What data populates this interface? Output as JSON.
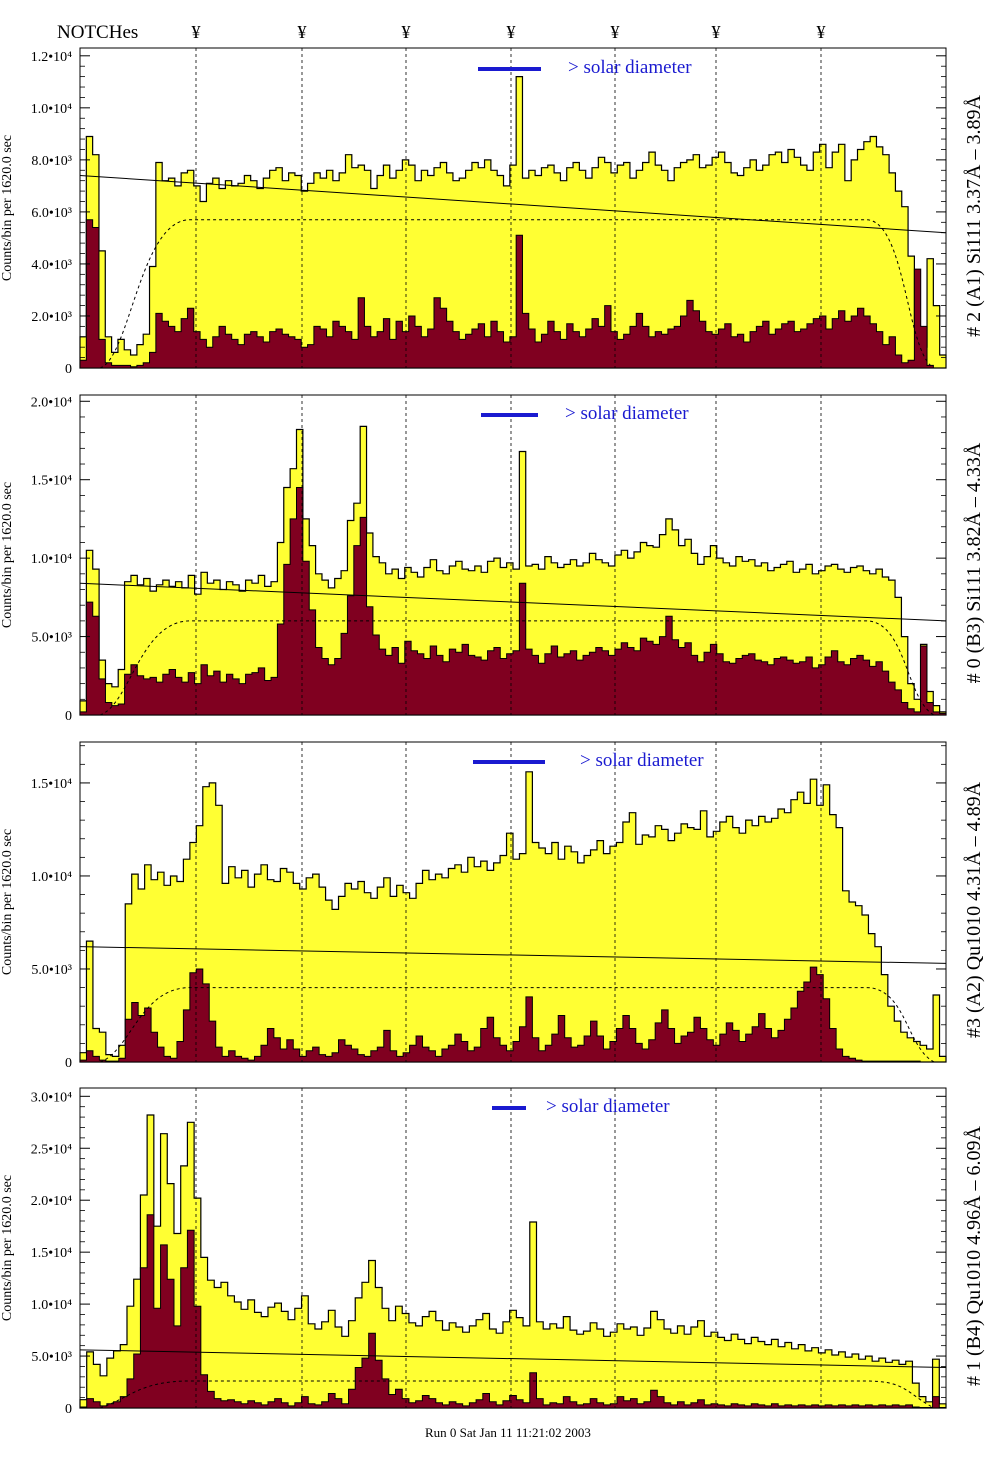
{
  "header": {
    "notches_label": "NOTCHes",
    "notch_symbol": "¥",
    "notch_positions": [
      196,
      302,
      406,
      511,
      615,
      716,
      821
    ]
  },
  "footer": {
    "run_stamp": "Run 0 Sat Jan 11 11:21:02 2003"
  },
  "colors": {
    "total_fill": "#ffff33",
    "line_fill": "#800020",
    "solar_bar": "#1a1ad0",
    "solar_text": "#1a1ad0"
  },
  "chart_data": [
    {
      "type": "area",
      "id": "A1",
      "right_label": "# 2 (A1) Si111  3.37Å – 3.89Å",
      "y_label": "Counts/bin per  1620.0 sec",
      "solar_label": "> solar diameter",
      "yticks": [
        {
          "v": 0,
          "label": "0"
        },
        {
          "v": 2000,
          "label": "2.0•10³"
        },
        {
          "v": 4000,
          "label": "4.0•10³"
        },
        {
          "v": 6000,
          "label": "6.0•10³"
        },
        {
          "v": 8000,
          "label": "8.0•10³"
        },
        {
          "v": 10000,
          "label": "1.0•10⁴"
        },
        {
          "v": 12000,
          "label": "1.2•10⁴"
        }
      ],
      "ylim": [
        0,
        12300
      ],
      "fit_values": [
        7400,
        5200
      ],
      "dashed_level": 5700,
      "total_counts": [
        1200,
        8900,
        8200,
        4500,
        1200,
        600,
        1100,
        700,
        500,
        900,
        1300,
        3900,
        7900,
        7200,
        7300,
        7000,
        7500,
        7600,
        7000,
        6400,
        7100,
        7300,
        6900,
        7200,
        7000,
        7100,
        7400,
        7200,
        6900,
        7300,
        7600,
        7700,
        7200,
        7500,
        7400,
        6800,
        7100,
        7500,
        7300,
        7600,
        7200,
        7500,
        8200,
        7700,
        7800,
        7600,
        6900,
        7400,
        7800,
        7300,
        7600,
        8000,
        7800,
        7200,
        7600,
        7400,
        7700,
        7900,
        7500,
        7200,
        7300,
        7600,
        7900,
        7700,
        8000,
        7600,
        7400,
        7000,
        7800,
        11200,
        7300,
        7600,
        7400,
        7700,
        7800,
        7500,
        7200,
        7700,
        7900,
        7600,
        7300,
        7700,
        8100,
        7900,
        7500,
        7800,
        7900,
        7300,
        7600,
        7900,
        8300,
        7800,
        7600,
        7200,
        7700,
        7900,
        8000,
        8200,
        7700,
        7800,
        8100,
        8300,
        7900,
        7500,
        7400,
        7700,
        8000,
        7600,
        7800,
        8200,
        8300,
        7900,
        8400,
        8100,
        7800,
        7600,
        8300,
        8600,
        7700,
        8300,
        8600,
        7200,
        8000,
        8400,
        8700,
        8900,
        8500,
        8200,
        7500,
        6800,
        6200,
        4300,
        1600,
        800,
        4200,
        2400,
        500
      ],
      "line_counts": [
        300,
        5700,
        5400,
        1100,
        200,
        100,
        100,
        100,
        50,
        100,
        200,
        600,
        2100,
        1800,
        1600,
        1400,
        1900,
        2300,
        1400,
        1100,
        800,
        1200,
        1600,
        1300,
        1100,
        900,
        1300,
        1400,
        1200,
        1000,
        1400,
        1500,
        1300,
        1200,
        1100,
        800,
        900,
        1600,
        1500,
        1200,
        1800,
        1600,
        1400,
        1100,
        2700,
        1600,
        1200,
        1400,
        1900,
        1100,
        1800,
        1400,
        2000,
        1600,
        1200,
        1500,
        2700,
        2300,
        1800,
        1400,
        1100,
        1300,
        1500,
        1700,
        1200,
        1800,
        1400,
        1000,
        1200,
        5100,
        2100,
        1500,
        1000,
        1300,
        1800,
        1400,
        1100,
        1700,
        1400,
        1200,
        1500,
        1900,
        1600,
        2400,
        1400,
        1100,
        1300,
        1600,
        2100,
        1600,
        1200,
        1400,
        1300,
        1500,
        1600,
        2000,
        2600,
        2200,
        1800,
        1400,
        1300,
        1500,
        1700,
        1200,
        1300,
        1000,
        1400,
        1600,
        1800,
        1300,
        1500,
        1700,
        1800,
        1400,
        1500,
        1700,
        1900,
        2000,
        1500,
        1900,
        2200,
        1800,
        2000,
        2300,
        2000,
        1700,
        1400,
        900,
        1200,
        500,
        200,
        300,
        3800,
        1600,
        100
      ]
    },
    {
      "type": "area",
      "id": "B3",
      "right_label": "# 0 (B3) Si111  3.82Å – 4.33Å",
      "y_label": "Counts/bin per  1620.0 sec",
      "solar_label": "> solar diameter",
      "yticks": [
        {
          "v": 0,
          "label": "0"
        },
        {
          "v": 5000,
          "label": "5.0•10³"
        },
        {
          "v": 10000,
          "label": "1.0•10⁴"
        },
        {
          "v": 15000,
          "label": "1.5•10⁴"
        },
        {
          "v": 20000,
          "label": "2.0•10⁴"
        }
      ],
      "ylim": [
        0,
        20400
      ],
      "fit_values": [
        8400,
        6000
      ],
      "dashed_level": 6000,
      "total_counts": [
        900,
        10500,
        9300,
        3500,
        2000,
        1800,
        2900,
        8500,
        8900,
        8300,
        8700,
        7900,
        8300,
        8600,
        8200,
        8500,
        8100,
        8900,
        7700,
        9100,
        8400,
        8600,
        8000,
        8500,
        8300,
        7900,
        8600,
        8400,
        8900,
        8200,
        8500,
        11000,
        14500,
        15700,
        18200,
        12500,
        10800,
        9000,
        8600,
        8100,
        8700,
        9200,
        12400,
        13500,
        18400,
        11600,
        10100,
        9700,
        9000,
        9300,
        8700,
        9400,
        9100,
        8800,
        9400,
        9900,
        9200,
        9000,
        9500,
        9800,
        9300,
        9200,
        9500,
        9100,
        9800,
        10000,
        9400,
        9700,
        9300,
        16800,
        9500,
        9600,
        9300,
        10100,
        9700,
        9400,
        9600,
        9900,
        9500,
        9700,
        10300,
        9900,
        9700,
        9500,
        10200,
        10500,
        10000,
        10400,
        11000,
        10800,
        10700,
        11500,
        12500,
        11800,
        10800,
        11200,
        10300,
        9600,
        10100,
        10800,
        10000,
        9700,
        9500,
        10100,
        9800,
        9900,
        9500,
        9700,
        9200,
        9400,
        9600,
        9800,
        9100,
        9300,
        9600,
        9000,
        9200,
        9500,
        9600,
        9300,
        9100,
        9400,
        9500,
        9200,
        9000,
        9300,
        8800,
        8600,
        7500,
        5000,
        2000,
        1000,
        4500,
        1500,
        600,
        200
      ],
      "line_counts": [
        200,
        7200,
        6300,
        2300,
        800,
        600,
        700,
        2600,
        3200,
        2500,
        2300,
        2400,
        2100,
        2600,
        2900,
        2400,
        2100,
        2700,
        2000,
        3200,
        2500,
        2800,
        2100,
        2600,
        2300,
        2000,
        2600,
        2700,
        3000,
        2200,
        2400,
        5800,
        9600,
        12500,
        14500,
        9800,
        6700,
        4300,
        3600,
        3200,
        3600,
        5200,
        7600,
        10800,
        12600,
        6900,
        5100,
        4200,
        3800,
        4300,
        3300,
        4700,
        4100,
        3900,
        3600,
        4400,
        3800,
        3400,
        4200,
        4000,
        4500,
        3800,
        3700,
        3500,
        4100,
        4300,
        3600,
        3900,
        4100,
        8400,
        4200,
        3800,
        3300,
        3900,
        4400,
        3700,
        3900,
        4100,
        3500,
        3800,
        4000,
        4300,
        4100,
        3800,
        4200,
        4600,
        4300,
        4100,
        4900,
        4700,
        4500,
        5000,
        6300,
        4800,
        4300,
        4600,
        3800,
        3400,
        4000,
        4500,
        3900,
        3400,
        3300,
        3600,
        3800,
        3900,
        3500,
        3400,
        3200,
        3600,
        3700,
        3500,
        3300,
        3400,
        3700,
        3000,
        3200,
        3700,
        4100,
        3400,
        3200,
        3600,
        3800,
        3500,
        3100,
        3400,
        2800,
        2100,
        1600,
        800,
        400,
        200,
        4400,
        800,
        200,
        100
      ]
    },
    {
      "type": "area",
      "id": "A2",
      "right_label": "#3 (A2) Qu1010  4.31Å – 4.89Å",
      "y_label": "Counts/bin per  1620.0 sec",
      "solar_label": "> solar diameter",
      "yticks": [
        {
          "v": 0,
          "label": "0"
        },
        {
          "v": 5000,
          "label": "5.0•10³"
        },
        {
          "v": 10000,
          "label": "1.0•10⁴"
        },
        {
          "v": 15000,
          "label": "1.5•10⁴"
        }
      ],
      "ylim": [
        0,
        17200
      ],
      "fit_values": [
        6200,
        5300
      ],
      "dashed_level": 4000,
      "total_counts": [
        500,
        6500,
        1800,
        1600,
        400,
        300,
        900,
        8500,
        10100,
        9300,
        10600,
        9800,
        10200,
        9500,
        10000,
        9700,
        10900,
        11800,
        12700,
        14800,
        15000,
        13800,
        9600,
        10500,
        9900,
        10300,
        9400,
        10100,
        10600,
        9800,
        9700,
        10400,
        10200,
        9600,
        9300,
        9900,
        10100,
        9400,
        8700,
        8200,
        8900,
        9600,
        9300,
        9700,
        9100,
        8800,
        9400,
        9900,
        8900,
        9500,
        9100,
        8800,
        9600,
        10300,
        9800,
        10100,
        9900,
        10400,
        10600,
        10200,
        11000,
        10500,
        10800,
        10300,
        10700,
        11100,
        12300,
        10900,
        11200,
        15600,
        11800,
        11500,
        11200,
        11800,
        10900,
        11600,
        11300,
        10700,
        11100,
        11400,
        11900,
        11200,
        11600,
        11800,
        12900,
        13400,
        11700,
        12200,
        12100,
        12700,
        12500,
        11900,
        12300,
        12800,
        12600,
        12500,
        13500,
        12100,
        12400,
        12900,
        13200,
        12600,
        12300,
        13000,
        12700,
        13200,
        12900,
        13100,
        13600,
        13400,
        14100,
        14500,
        13900,
        15200,
        13800,
        14900,
        13300,
        12600,
        9200,
        8600,
        8400,
        7900,
        6900,
        6200,
        4700,
        3000,
        2200,
        1600,
        1300,
        1100,
        900,
        700,
        3600,
        300
      ],
      "line_counts": [
        100,
        600,
        300,
        100,
        50,
        50,
        200,
        2300,
        3200,
        2500,
        2900,
        1600,
        800,
        300,
        200,
        1100,
        2800,
        4800,
        5000,
        4200,
        2200,
        800,
        300,
        600,
        300,
        200,
        100,
        300,
        900,
        1800,
        1300,
        700,
        1200,
        700,
        300,
        600,
        800,
        400,
        300,
        500,
        1200,
        900,
        700,
        400,
        300,
        600,
        800,
        1700,
        600,
        300,
        500,
        900,
        1400,
        800,
        600,
        300,
        700,
        900,
        1500,
        1100,
        600,
        800,
        1800,
        2400,
        1300,
        900,
        600,
        1100,
        1900,
        3500,
        1300,
        600,
        900,
        1500,
        2500,
        1300,
        800,
        900,
        1400,
        2200,
        1400,
        700,
        1100,
        1800,
        2500,
        1800,
        1000,
        700,
        1200,
        2100,
        2800,
        1800,
        1000,
        1400,
        1600,
        2400,
        1800,
        1200,
        900,
        1500,
        2100,
        1700,
        1100,
        1500,
        1900,
        2600,
        1800,
        1300,
        1700,
        2300,
        2900,
        3800,
        4300,
        5100,
        4700,
        3400,
        1800,
        700,
        300,
        200,
        100,
        50,
        50,
        50,
        50,
        50,
        50,
        50,
        50,
        50
      ]
    },
    {
      "type": "area",
      "id": "B4",
      "right_label": "# 1 (B4) Qu1010 4.96Å – 6.09Å",
      "y_label": "Counts/bin per  1620.0 sec",
      "solar_label": "> solar diameter",
      "yticks": [
        {
          "v": 0,
          "label": "0"
        },
        {
          "v": 5000,
          "label": "5.0•10³"
        },
        {
          "v": 10000,
          "label": "1.0•10⁴"
        },
        {
          "v": 15000,
          "label": "1.5•10⁴"
        },
        {
          "v": 20000,
          "label": "2.0•10⁴"
        },
        {
          "v": 25000,
          "label": "2.5•10⁴"
        },
        {
          "v": 30000,
          "label": "3.0•10⁴"
        }
      ],
      "ylim": [
        0,
        30800
      ],
      "fit_values": [
        5600,
        3900
      ],
      "dashed_level": 2600,
      "total_counts": [
        800,
        5400,
        4200,
        3100,
        4800,
        5500,
        6100,
        9800,
        12400,
        20500,
        28200,
        17500,
        26400,
        21600,
        16800,
        23300,
        27500,
        20200,
        14500,
        12300,
        11600,
        12100,
        10800,
        10200,
        9500,
        10400,
        9200,
        8800,
        9700,
        10100,
        9300,
        8500,
        9600,
        10800,
        8100,
        7600,
        8300,
        9400,
        7800,
        6900,
        8400,
        10600,
        12100,
        14200,
        11600,
        9600,
        8400,
        9800,
        9100,
        8200,
        7900,
        8800,
        9300,
        8400,
        7500,
        8200,
        7800,
        7300,
        7900,
        8500,
        9100,
        7600,
        7200,
        8300,
        9400,
        8700,
        7900,
        17900,
        8300,
        7600,
        8100,
        7700,
        8800,
        7500,
        7100,
        7400,
        8200,
        7600,
        6900,
        7300,
        8100,
        7600,
        7800,
        7000,
        7700,
        9300,
        8500,
        7600,
        7200,
        7900,
        7100,
        7800,
        8400,
        6900,
        7300,
        6800,
        6500,
        7100,
        6600,
        6200,
        6800,
        6400,
        6100,
        6600,
        5900,
        6300,
        5700,
        6100,
        5500,
        5800,
        5300,
        5600,
        5100,
        5400,
        4900,
        5200,
        4700,
        5000,
        4500,
        4800,
        4400,
        4600,
        4200,
        4500,
        2400,
        1100,
        600,
        4700,
        400
      ],
      "line_counts": [
        100,
        900,
        600,
        200,
        400,
        600,
        1100,
        2800,
        5200,
        13500,
        18600,
        9600,
        15700,
        12400,
        7900,
        13500,
        17100,
        9800,
        3200,
        1600,
        900,
        700,
        800,
        600,
        400,
        700,
        500,
        300,
        600,
        900,
        500,
        200,
        500,
        1100,
        400,
        300,
        600,
        1400,
        900,
        400,
        1800,
        3900,
        4800,
        7200,
        4600,
        2800,
        1300,
        1800,
        900,
        500,
        700,
        1200,
        900,
        500,
        300,
        600,
        400,
        200,
        500,
        800,
        1400,
        600,
        300,
        700,
        1200,
        800,
        500,
        3400,
        900,
        300,
        500,
        400,
        1100,
        600,
        300,
        400,
        900,
        500,
        300,
        400,
        1100,
        700,
        900,
        400,
        600,
        1700,
        1100,
        500,
        300,
        600,
        300,
        500,
        800,
        300,
        400,
        300,
        200,
        400,
        300,
        200,
        400,
        300,
        200,
        400,
        200,
        300,
        200,
        300,
        200,
        300,
        200,
        300,
        200,
        300,
        200,
        300,
        200,
        300,
        200,
        300,
        200,
        300,
        200,
        300,
        100,
        50,
        50,
        1100,
        50
      ]
    }
  ]
}
